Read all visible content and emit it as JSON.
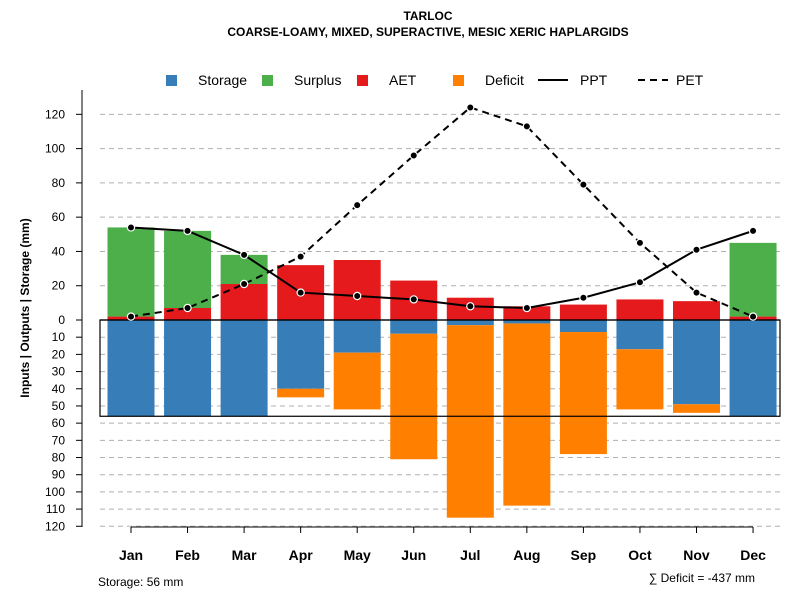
{
  "chart_data": {
    "type": "bar",
    "title": "TARLOC",
    "subtitle": "COARSE-LOAMY, MIXED, SUPERACTIVE, MESIC XERIC HAPLARGIDS",
    "ylabel": "Inputs | Outputs | Storage     (mm)",
    "categories": [
      "Jan",
      "Feb",
      "Mar",
      "Apr",
      "May",
      "Jun",
      "Jul",
      "Aug",
      "Sep",
      "Oct",
      "Nov",
      "Dec"
    ],
    "upper_ticks": [
      "0",
      "20",
      "40",
      "60",
      "80",
      "100",
      "120"
    ],
    "lower_ticks": [
      "10",
      "20",
      "30",
      "40",
      "50",
      "60",
      "70",
      "80",
      "90",
      "100",
      "110",
      "120"
    ],
    "ylim_upper": [
      0,
      130
    ],
    "ylim_lower": [
      0,
      120
    ],
    "colors": {
      "storage": "#377EB8",
      "surplus": "#4DAF4A",
      "aet": "#E41A1C",
      "deficit": "#FF7F00",
      "grid": "#b0b0b0"
    },
    "legend": [
      "Storage",
      "Surplus",
      "AET",
      "Deficit",
      "PPT",
      "PET"
    ],
    "series": [
      {
        "name": "AET",
        "values": [
          2,
          7,
          21,
          32,
          35,
          23,
          13,
          8,
          9,
          12,
          11,
          2
        ]
      },
      {
        "name": "Surplus",
        "values": [
          52,
          45,
          17,
          0,
          0,
          0,
          0,
          0,
          0,
          0,
          0,
          43
        ]
      },
      {
        "name": "Storage",
        "values": [
          56,
          56,
          56,
          40,
          19,
          8,
          3,
          2,
          7,
          17,
          49,
          56
        ]
      },
      {
        "name": "Deficit",
        "values": [
          0,
          0,
          0,
          5,
          33,
          73,
          112,
          106,
          71,
          35,
          5,
          0
        ]
      },
      {
        "name": "PPT",
        "values": [
          54,
          52,
          38,
          16,
          14,
          12,
          8,
          7,
          13,
          22,
          41,
          52
        ]
      },
      {
        "name": "PET",
        "values": [
          2,
          7,
          21,
          37,
          67,
          96,
          124,
          113,
          79,
          45,
          16,
          2
        ]
      }
    ],
    "storage_capacity": 56,
    "notes": {
      "storage": "Storage: 56 mm",
      "deficit": "∑ Deficit = -437 mm"
    }
  }
}
